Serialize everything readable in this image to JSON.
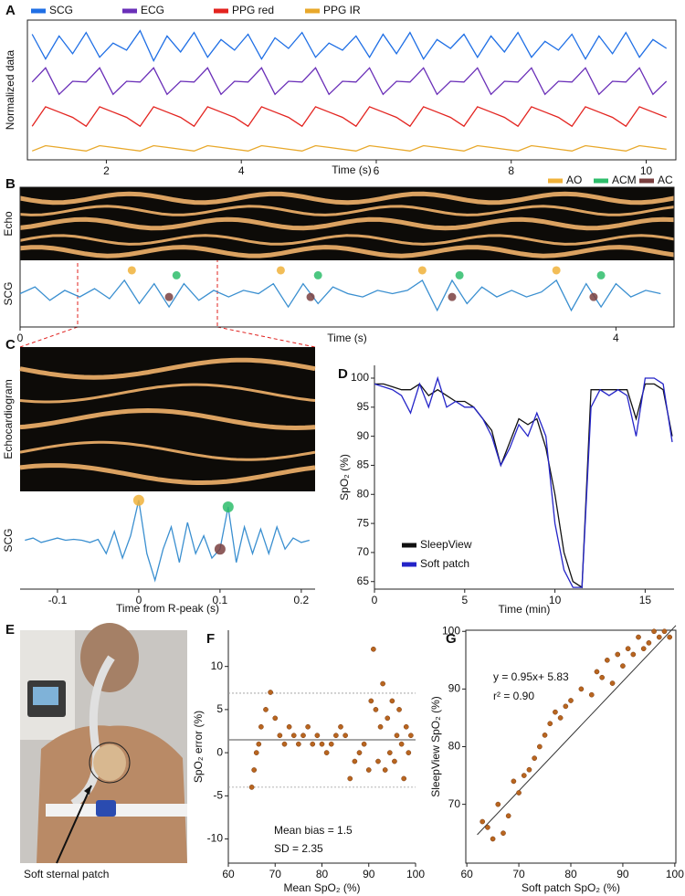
{
  "panel_labels": [
    "A",
    "B",
    "C",
    "D",
    "E",
    "F",
    "G"
  ],
  "photo_caption": "Soft sternal patch",
  "chart_data": [
    {
      "type": "line",
      "x_label": "Time (s)",
      "y_label": "Normalized data",
      "xlim": [
        0.83,
        10.44
      ],
      "xticks": [
        2,
        4,
        6,
        8,
        10
      ],
      "ylim": [
        0.8,
        4.75
      ],
      "x": [
        0.9,
        1.1,
        1.3,
        1.5,
        1.7,
        1.9,
        2.1,
        2.3,
        2.5,
        2.7,
        2.9,
        3.1,
        3.3,
        3.5,
        3.7,
        3.9,
        4.1,
        4.3,
        4.5,
        4.7,
        4.9,
        5.1,
        5.3,
        5.5,
        5.7,
        5.9,
        6.1,
        6.3,
        6.5,
        6.7,
        6.9,
        7.1,
        7.3,
        7.5,
        7.7,
        7.9,
        8.1,
        8.3,
        8.5,
        8.7,
        8.9,
        9.1,
        9.3,
        9.5,
        9.7,
        9.9,
        10.1,
        10.3
      ],
      "series": [
        {
          "name": "SCG",
          "color": "#1f6fe5",
          "values": [
            4.35,
            3.65,
            4.3,
            3.8,
            4.4,
            3.7,
            4.1,
            3.9,
            4.45,
            3.6,
            4.3,
            3.85,
            4.4,
            3.7,
            4.2,
            3.9,
            4.35,
            3.65,
            4.25,
            3.95,
            4.4,
            3.7,
            4.1,
            3.9,
            4.3,
            3.7,
            4.35,
            3.8,
            4.4,
            3.65,
            4.2,
            3.95,
            4.35,
            3.7,
            4.3,
            3.85,
            4.4,
            3.7,
            4.15,
            3.9,
            4.35,
            3.65,
            4.3,
            3.8,
            4.4,
            3.7,
            4.2,
            3.95
          ]
        },
        {
          "name": "ECG",
          "color": "#6a2fb8",
          "values": [
            3.0,
            3.4,
            2.65,
            3.02,
            3.0,
            3.4,
            2.65,
            3.02,
            3.0,
            3.4,
            2.65,
            3.02,
            3.0,
            3.4,
            2.65,
            3.02,
            3.0,
            3.4,
            2.65,
            3.02,
            3.0,
            3.4,
            2.65,
            3.02,
            3.0,
            3.4,
            2.65,
            3.02,
            3.0,
            3.4,
            2.65,
            3.02,
            3.0,
            3.4,
            2.65,
            3.02,
            3.0,
            3.4,
            2.65,
            3.02,
            3.0,
            3.4,
            2.65,
            3.02,
            3.0,
            3.4,
            2.65,
            3.02
          ]
        },
        {
          "name": "PPG red",
          "color": "#e3231f",
          "values": [
            1.75,
            2.3,
            2.15,
            2.0,
            1.75,
            2.3,
            2.15,
            2.0,
            1.75,
            2.3,
            2.15,
            2.0,
            1.75,
            2.3,
            2.15,
            2.0,
            1.75,
            2.3,
            2.15,
            2.0,
            1.75,
            2.3,
            2.15,
            2.0,
            1.75,
            2.3,
            2.15,
            2.0,
            1.75,
            2.3,
            2.15,
            2.0,
            1.75,
            2.3,
            2.15,
            2.0,
            1.75,
            2.3,
            2.15,
            2.0,
            1.75,
            2.3,
            2.15,
            2.0,
            1.75,
            2.3,
            2.15,
            2.0
          ]
        },
        {
          "name": "PPG IR",
          "color": "#e8a82a",
          "values": [
            1.05,
            1.2,
            1.15,
            1.1,
            1.05,
            1.2,
            1.15,
            1.1,
            1.05,
            1.2,
            1.15,
            1.1,
            1.05,
            1.2,
            1.15,
            1.1,
            1.05,
            1.2,
            1.15,
            1.1,
            1.05,
            1.2,
            1.15,
            1.1,
            1.05,
            1.2,
            1.15,
            1.1,
            1.05,
            1.2,
            1.15,
            1.1,
            1.05,
            1.2,
            1.15,
            1.1,
            1.05,
            1.2,
            1.15,
            1.1,
            1.05,
            1.2,
            1.15,
            1.1,
            1.05,
            1.2,
            1.15,
            1.1
          ]
        }
      ]
    },
    {
      "type": "line",
      "x_label": "Time (s)",
      "y_label": "SCG",
      "echo_label": "Echo",
      "xlim": [
        0,
        4.39
      ],
      "xticks": [
        0,
        4
      ],
      "ylim": [
        -1,
        1
      ],
      "x": [
        0,
        0.1,
        0.2,
        0.3,
        0.4,
        0.5,
        0.6,
        0.7,
        0.8,
        0.9,
        1.0,
        1.1,
        1.2,
        1.3,
        1.4,
        1.5,
        1.6,
        1.7,
        1.8,
        1.9,
        2.0,
        2.1,
        2.2,
        2.3,
        2.4,
        2.5,
        2.6,
        2.7,
        2.8,
        2.9,
        3.0,
        3.1,
        3.2,
        3.3,
        3.4,
        3.5,
        3.6,
        3.7,
        3.8,
        3.9,
        4.0,
        4.1,
        4.2,
        4.3
      ],
      "series": [
        {
          "color": "#3a8fd0",
          "values": [
            0,
            0.2,
            -0.2,
            0.1,
            -0.1,
            0.15,
            -0.15,
            0.4,
            -0.3,
            0.3,
            -0.4,
            0.3,
            -0.2,
            0.1,
            -0.1,
            0.1,
            0,
            0.3,
            -0.4,
            0.3,
            -0.3,
            0.2,
            0,
            -0.1,
            0.1,
            0,
            0.1,
            0.4,
            -0.5,
            0.4,
            -0.3,
            0.2,
            -0.1,
            0.1,
            -0.1,
            0.05,
            0.4,
            -0.5,
            0.3,
            -0.4,
            0.3,
            -0.1,
            0.1,
            0
          ]
        }
      ],
      "markers": [
        {
          "name": "AO",
          "color": "#f0b23a",
          "x": [
            0.75,
            1.75,
            2.7,
            3.6
          ],
          "y": [
            0.7,
            0.7,
            0.7,
            0.7
          ]
        },
        {
          "name": "ACM",
          "color": "#2ebd6b",
          "x": [
            1.05,
            2.0,
            2.95,
            3.9
          ],
          "y": [
            0.55,
            0.55,
            0.55,
            0.55
          ]
        },
        {
          "name": "AC",
          "color": "#7a3f3f",
          "x": [
            1.0,
            1.95,
            2.9,
            3.85
          ],
          "y": [
            -0.1,
            -0.1,
            -0.1,
            -0.1
          ]
        }
      ]
    },
    {
      "type": "line",
      "x_label": "Time from R-peak (s)",
      "y_label": "SCG",
      "echo_label": "Echocardiogram",
      "xlim": [
        -0.146,
        0.217
      ],
      "xticks": [
        -0.1,
        0,
        0.1,
        0.2
      ],
      "ylim": [
        -1.1,
        1.1
      ],
      "x": [
        -0.14,
        -0.13,
        -0.12,
        -0.11,
        -0.1,
        -0.09,
        -0.08,
        -0.07,
        -0.06,
        -0.05,
        -0.04,
        -0.03,
        -0.02,
        -0.01,
        0,
        0.01,
        0.02,
        0.03,
        0.04,
        0.05,
        0.06,
        0.07,
        0.08,
        0.09,
        0.1,
        0.11,
        0.12,
        0.13,
        0.14,
        0.15,
        0.16,
        0.17,
        0.18,
        0.19,
        0.2,
        0.21
      ],
      "series": [
        {
          "color": "#3a8fd0",
          "values": [
            0,
            0.05,
            -0.05,
            0,
            0.05,
            0,
            0.02,
            0,
            -0.05,
            0.02,
            -0.3,
            0.2,
            -0.4,
            0.1,
            0.9,
            -0.3,
            -0.9,
            -0.2,
            0.3,
            -0.5,
            0.4,
            -0.3,
            0.1,
            -0.4,
            -0.2,
            0.75,
            -0.5,
            0.3,
            -0.3,
            0.25,
            -0.3,
            0.3,
            -0.2,
            0.05,
            -0.05,
            0
          ]
        }
      ],
      "markers": [
        {
          "color": "#f0b23a",
          "x": [
            0
          ],
          "y": [
            0.9
          ]
        },
        {
          "color": "#2ebd6b",
          "x": [
            0.11
          ],
          "y": [
            0.75
          ]
        },
        {
          "color": "#7a3f3f",
          "x": [
            0.1
          ],
          "y": [
            -0.2
          ]
        }
      ]
    },
    {
      "type": "line",
      "x_label": "Time (min)",
      "y_label": "SpO₂ (%)",
      "xlim": [
        0,
        16.6
      ],
      "xticks": [
        0,
        5,
        10,
        15
      ],
      "ylim": [
        63.7,
        102.2
      ],
      "yticks": [
        65,
        70,
        75,
        80,
        85,
        90,
        95,
        100
      ],
      "x": [
        0,
        0.5,
        1,
        1.5,
        2,
        2.5,
        3,
        3.5,
        4,
        4.5,
        5,
        5.5,
        6,
        6.5,
        7,
        7.5,
        8,
        8.5,
        9,
        9.5,
        10,
        10.5,
        11,
        11.5,
        12,
        12.5,
        13,
        13.5,
        14,
        14.5,
        15,
        15.5,
        16,
        16.5
      ],
      "series": [
        {
          "name": "SleepView",
          "color": "#111111",
          "values": [
            99,
            99,
            98.5,
            98,
            98,
            99,
            97,
            98,
            97,
            96,
            96,
            95,
            93,
            91,
            85,
            89,
            93,
            92,
            93,
            88,
            80,
            70,
            65,
            64,
            98,
            98,
            98,
            98,
            98,
            93,
            99,
            99,
            98,
            90
          ]
        },
        {
          "name": "Soft patch",
          "color": "#2424c8",
          "values": [
            99,
            98.5,
            98,
            97,
            94,
            99,
            95,
            100,
            95,
            96,
            95,
            95,
            93,
            90,
            85,
            88,
            92,
            90,
            94,
            90,
            75,
            67,
            64,
            64,
            95,
            98,
            97,
            98,
            97,
            90,
            100,
            100,
            99,
            89
          ]
        }
      ]
    },
    {
      "type": "scatter",
      "x_label": "Mean SpO₂ (%)",
      "y_label": "SpO₂ error (%)",
      "xlim": [
        60,
        100
      ],
      "xticks": [
        60,
        70,
        80,
        90,
        100
      ],
      "ylim": [
        -12.8,
        14.2
      ],
      "yticks": [
        -10,
        -5,
        0,
        5,
        10
      ],
      "hlines": [
        1.5,
        6.9,
        -4
      ],
      "color": "#b8651f",
      "annotations": [
        "Mean bias = 1.5",
        "SD = 2.35"
      ],
      "x": [
        65,
        65.5,
        66,
        66.5,
        67,
        68,
        69,
        70,
        71,
        72,
        73,
        74,
        75,
        76,
        77,
        78,
        79,
        80,
        81,
        82,
        83,
        84,
        85,
        86,
        87,
        88,
        89,
        90,
        90.5,
        91,
        91.5,
        92,
        92.5,
        93,
        93.5,
        94,
        94.5,
        95,
        95.5,
        96,
        96.5,
        97,
        97.5,
        98,
        98.5,
        99
      ],
      "values": [
        -4,
        -2,
        0,
        1,
        3,
        5,
        7,
        4,
        2,
        1,
        3,
        2,
        1,
        2,
        3,
        1,
        2,
        1,
        0,
        1,
        2,
        3,
        2,
        -3,
        -1,
        0,
        1,
        -2,
        6,
        12,
        5,
        -1,
        3,
        8,
        -2,
        4,
        0,
        6,
        -1,
        2,
        5,
        1,
        -3,
        3,
        0,
        2
      ]
    },
    {
      "type": "scatter",
      "x_label": "Soft patch SpO₂ (%)",
      "y_label": "SleepView SpO₂ (%)",
      "xlim": [
        59.8,
        100.2
      ],
      "xticks": [
        60,
        70,
        80,
        90,
        100
      ],
      "ylim": [
        59.8,
        100.2
      ],
      "yticks": [
        70,
        80,
        90,
        100
      ],
      "color": "#b8651f",
      "fit": {
        "slope": 0.95,
        "intercept": 5.83
      },
      "annotations": [
        "y = 0.95x+ 5.83",
        "r² = 0.90"
      ],
      "x": [
        63,
        64,
        65,
        66,
        67,
        68,
        69,
        70,
        71,
        72,
        73,
        74,
        75,
        76,
        77,
        78,
        79,
        80,
        82,
        84,
        85,
        86,
        87,
        88,
        89,
        90,
        91,
        92,
        93,
        94,
        95,
        96,
        97,
        98,
        99
      ],
      "values": [
        67,
        66,
        64,
        70,
        65,
        68,
        74,
        72,
        75,
        76,
        78,
        80,
        82,
        84,
        86,
        85,
        87,
        88,
        90,
        89,
        93,
        92,
        95,
        91,
        96,
        94,
        97,
        96,
        99,
        97,
        98,
        100,
        99,
        100,
        99
      ]
    }
  ]
}
